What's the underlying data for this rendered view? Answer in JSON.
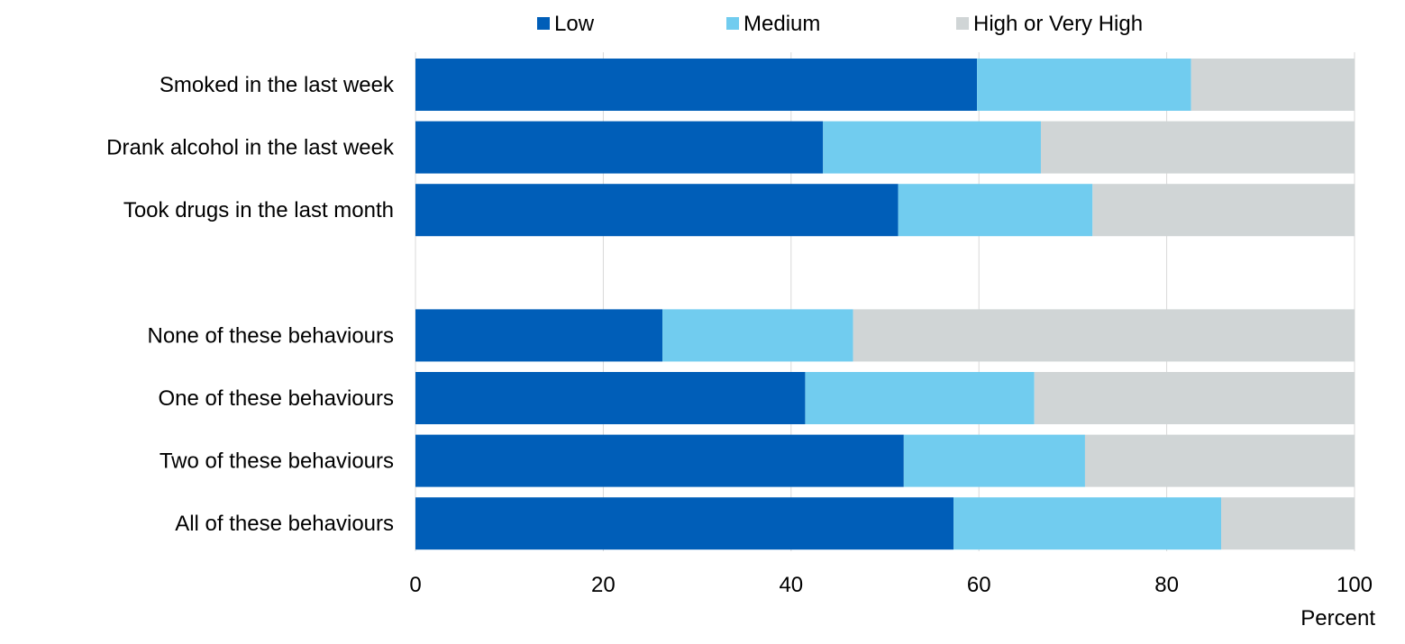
{
  "chart_data": {
    "type": "bar",
    "orientation": "horizontal",
    "stacked": true,
    "xlabel": "Percent",
    "xlim": [
      0,
      100
    ],
    "xticks": [
      0,
      20,
      40,
      60,
      80,
      100
    ],
    "grid": "vertical",
    "legend": "top",
    "categories": [
      "Smoked in the last week",
      "Drank alcohol in the last week",
      "Took drugs in the last month",
      "",
      "None of these behaviours",
      "One of these behaviours",
      "Two of these behaviours",
      "All of these behaviours"
    ],
    "series": [
      {
        "name": "Low",
        "color": "#005EB8",
        "values": [
          59.8,
          43.4,
          51.4,
          null,
          26.3,
          41.5,
          52.0,
          57.3
        ]
      },
      {
        "name": "Medium",
        "color": "#71CCEF",
        "values": [
          22.8,
          23.2,
          20.7,
          null,
          20.3,
          24.4,
          19.3,
          28.5
        ]
      },
      {
        "name": "High or Very High",
        "color": "#D0D5D6",
        "values": [
          17.4,
          33.4,
          27.9,
          null,
          53.4,
          34.1,
          28.7,
          14.2
        ]
      }
    ]
  }
}
